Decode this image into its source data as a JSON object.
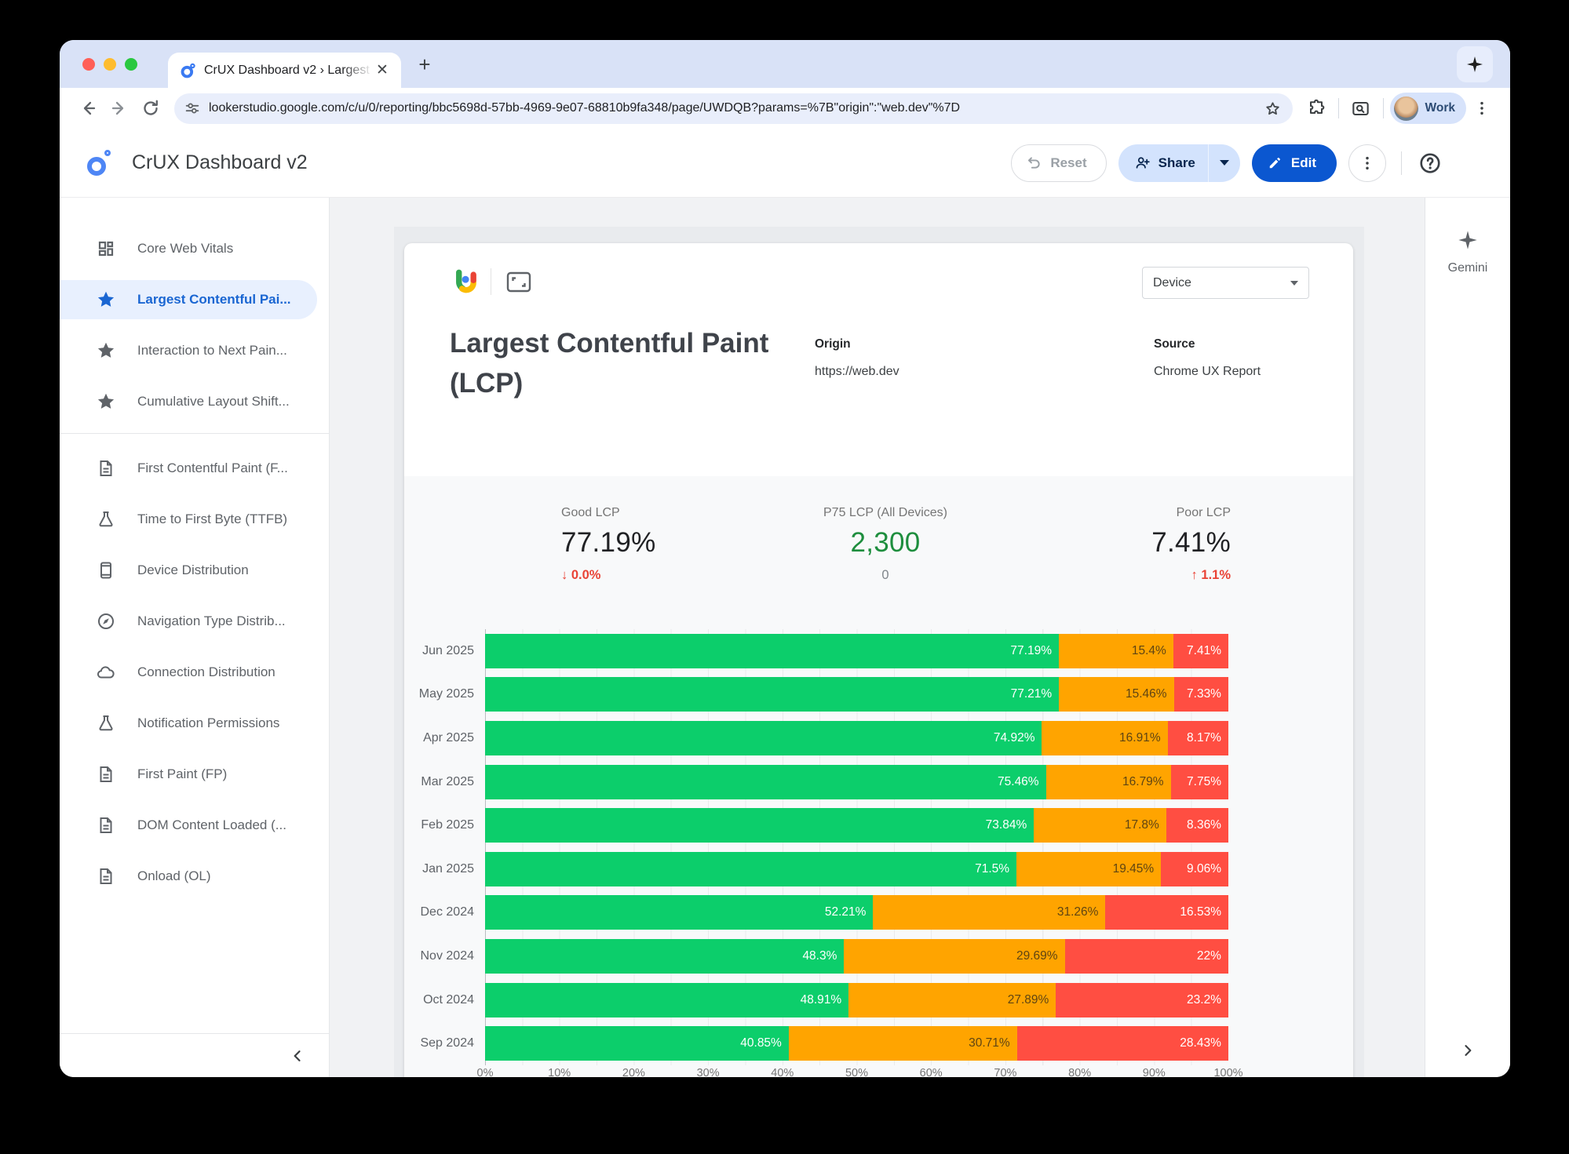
{
  "browser": {
    "tab_title": "CrUX Dashboard v2 › Largest",
    "url": "lookerstudio.google.com/c/u/0/reporting/bbc5698d-57bb-4969-9e07-68810b9fa348/page/UWDQB?params=%7B\"origin\":\"web.dev\"%7D",
    "profile_label": "Work"
  },
  "header": {
    "title": "CrUX Dashboard v2",
    "reset_label": "Reset",
    "share_label": "Share",
    "edit_label": "Edit"
  },
  "sidebar": {
    "items": [
      {
        "label": "Core Web Vitals",
        "icon": "grid",
        "active": false,
        "divider_after": false
      },
      {
        "label": "Largest Contentful Pai...",
        "icon": "star",
        "active": true,
        "divider_after": false
      },
      {
        "label": "Interaction to Next Pain...",
        "icon": "star",
        "active": false,
        "divider_after": false
      },
      {
        "label": "Cumulative Layout Shift...",
        "icon": "star",
        "active": false,
        "divider_after": true
      },
      {
        "label": "First Contentful Paint (F...",
        "icon": "doc",
        "active": false,
        "divider_after": false
      },
      {
        "label": "Time to First Byte (TTFB)",
        "icon": "flask",
        "active": false,
        "divider_after": false
      },
      {
        "label": "Device Distribution",
        "icon": "phone",
        "active": false,
        "divider_after": false
      },
      {
        "label": "Navigation Type Distrib...",
        "icon": "compass",
        "active": false,
        "divider_after": false
      },
      {
        "label": "Connection Distribution",
        "icon": "cloud",
        "active": false,
        "divider_after": false
      },
      {
        "label": "Notification Permissions",
        "icon": "flask",
        "active": false,
        "divider_after": false
      },
      {
        "label": "First Paint (FP)",
        "icon": "doc",
        "active": false,
        "divider_after": false
      },
      {
        "label": "DOM Content Loaded (...",
        "icon": "doc",
        "active": false,
        "divider_after": false
      },
      {
        "label": "Onload (OL)",
        "icon": "doc",
        "active": false,
        "divider_after": false
      }
    ],
    "collapse_icon": "chevron-left"
  },
  "report": {
    "device_filter_label": "Device",
    "title": "Largest Contentful Paint (LCP)",
    "origin_label": "Origin",
    "origin_value": "https://web.dev",
    "source_label": "Source",
    "source_value": "Chrome UX Report",
    "scorecards": [
      {
        "label": "Good LCP",
        "value": "77.19%",
        "delta_arrow": "↓",
        "delta": "0.0%",
        "delta_style": "red"
      },
      {
        "label": "P75 LCP (All Devices)",
        "value": "2,300",
        "delta_arrow": "",
        "delta": "0",
        "delta_style": "grey"
      },
      {
        "label": "Poor LCP",
        "value": "7.41%",
        "delta_arrow": "↑",
        "delta": "1.1%",
        "delta_style": "red"
      }
    ]
  },
  "gemini": {
    "label": "Gemini"
  },
  "colors": {
    "good": "#0cce6b",
    "needs_improvement": "#ffa400",
    "poor": "#ff4e42",
    "p75_value": "#1e8e3e",
    "accent_blue": "#0b57d0",
    "delta_red": "#e94235"
  },
  "chart_data": {
    "type": "bar",
    "orientation": "horizontal",
    "stacked": true,
    "categories": [
      "Jun 2025",
      "May 2025",
      "Apr 2025",
      "Mar 2025",
      "Feb 2025",
      "Jan 2025",
      "Dec 2024",
      "Nov 2024",
      "Oct 2024",
      "Sep 2024"
    ],
    "series": [
      {
        "name": "Good",
        "color": "#0cce6b",
        "values": [
          77.19,
          77.21,
          74.92,
          75.46,
          73.84,
          71.5,
          52.21,
          48.3,
          48.91,
          40.85
        ]
      },
      {
        "name": "Needs Improvement",
        "color": "#ffa400",
        "values": [
          15.4,
          15.46,
          16.91,
          16.79,
          17.8,
          19.45,
          31.26,
          29.69,
          27.89,
          30.71
        ]
      },
      {
        "name": "Poor",
        "color": "#ff4e42",
        "values": [
          7.41,
          7.33,
          8.17,
          7.75,
          8.36,
          9.06,
          16.53,
          22,
          23.2,
          28.43
        ]
      }
    ],
    "value_label_suffix": "%",
    "xlim": [
      0,
      100
    ],
    "x_ticks": [
      "0%",
      "10%",
      "20%",
      "30%",
      "40%",
      "50%",
      "60%",
      "70%",
      "80%",
      "90%",
      "100%"
    ],
    "grid": true,
    "legend": "none"
  }
}
